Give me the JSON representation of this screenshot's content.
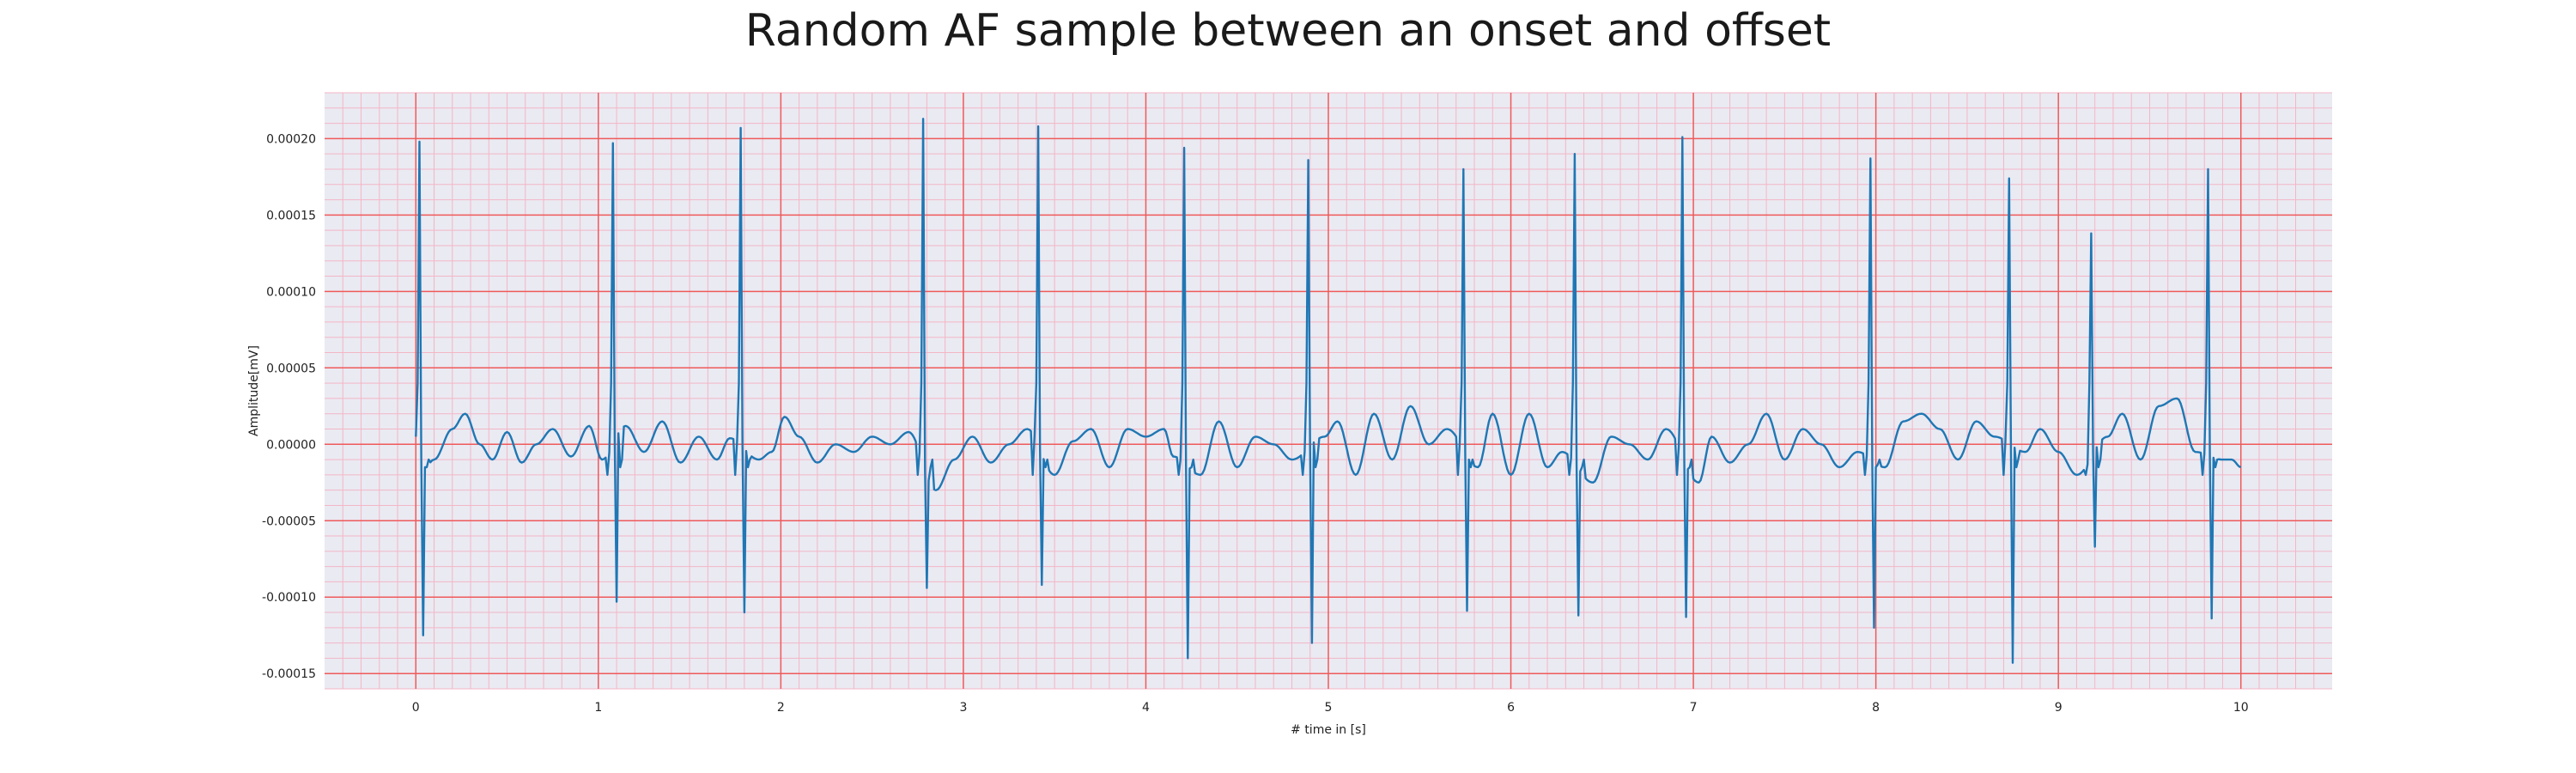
{
  "chart_data": {
    "type": "line",
    "title": "Random AF sample between an onset and offset",
    "xlabel": "# time in [s]",
    "ylabel": "Amplitude[mV]",
    "xlim": [
      -0.5,
      10.5
    ],
    "ylim": [
      -0.00016,
      0.00023
    ],
    "x_ticks": [
      0,
      1,
      2,
      3,
      4,
      5,
      6,
      7,
      8,
      9,
      10
    ],
    "y_ticks": [
      -0.00015,
      -0.0001,
      -5e-05,
      0.0,
      5e-05,
      0.0001,
      0.00015,
      0.0002
    ],
    "y_tick_labels": [
      "-0.00015",
      "-0.00010",
      "-0.00005",
      "0.00000",
      "0.00005",
      "0.00010",
      "0.00015",
      "0.00020"
    ],
    "grid": true,
    "minor_grid": true,
    "series": [
      {
        "color": "#1f77b4",
        "sampling_interval_s": 0.01,
        "r_peaks": [
          {
            "t": 0.02,
            "peak": 0.000198,
            "trough": -0.000125
          },
          {
            "t": 1.08,
            "peak": 0.000197,
            "trough": -0.000103
          },
          {
            "t": 1.78,
            "peak": 0.000207,
            "trough": -0.00011
          },
          {
            "t": 2.78,
            "peak": 0.000213,
            "trough": -9.4e-05
          },
          {
            "t": 3.41,
            "peak": 0.000208,
            "trough": -9.2e-05
          },
          {
            "t": 4.21,
            "peak": 0.000194,
            "trough": -0.00014
          },
          {
            "t": 4.89,
            "peak": 0.000186,
            "trough": -0.00013
          },
          {
            "t": 5.74,
            "peak": 0.00018,
            "trough": -0.000109
          },
          {
            "t": 6.35,
            "peak": 0.00019,
            "trough": -0.000112
          },
          {
            "t": 6.94,
            "peak": 0.000201,
            "trough": -0.000113
          },
          {
            "t": 7.97,
            "peak": 0.000187,
            "trough": -0.00012
          },
          {
            "t": 8.73,
            "peak": 0.000174,
            "trough": -0.000143
          },
          {
            "t": 9.18,
            "peak": 0.000138,
            "trough": -6.7e-05
          },
          {
            "t": 9.82,
            "peak": 0.00018,
            "trough": -0.000114
          }
        ],
        "baseline_x": [
          0.0,
          0.05,
          0.1,
          0.2,
          0.27,
          0.35,
          0.42,
          0.5,
          0.58,
          0.66,
          0.75,
          0.85,
          0.95,
          1.02,
          1.15,
          1.25,
          1.35,
          1.45,
          1.55,
          1.65,
          1.72,
          1.88,
          1.95,
          2.02,
          2.1,
          2.2,
          2.3,
          2.4,
          2.5,
          2.6,
          2.7,
          2.85,
          2.95,
          3.05,
          3.15,
          3.25,
          3.35,
          3.5,
          3.6,
          3.7,
          3.8,
          3.9,
          4.0,
          4.1,
          4.15,
          4.3,
          4.4,
          4.5,
          4.6,
          4.7,
          4.8,
          4.98,
          5.05,
          5.15,
          5.25,
          5.35,
          5.45,
          5.55,
          5.65,
          5.82,
          5.9,
          6.0,
          6.1,
          6.2,
          6.28,
          6.45,
          6.55,
          6.65,
          6.75,
          6.85,
          7.03,
          7.1,
          7.2,
          7.3,
          7.4,
          7.5,
          7.6,
          7.7,
          7.8,
          7.9,
          8.05,
          8.15,
          8.25,
          8.35,
          8.45,
          8.55,
          8.65,
          8.82,
          8.9,
          9.0,
          9.1,
          9.27,
          9.35,
          9.45,
          9.55,
          9.65,
          9.75,
          9.9,
          9.95,
          10.0
        ],
        "baseline_y": [
          5e-06,
          -1.5e-05,
          -1e-05,
          1e-05,
          2e-05,
          0.0,
          -1e-05,
          8e-06,
          -1.2e-05,
          0.0,
          1e-05,
          -8e-06,
          1.2e-05,
          -1e-05,
          1.2e-05,
          -5e-06,
          1.5e-05,
          -1.2e-05,
          5e-06,
          -1e-05,
          4e-06,
          -1e-05,
          -5e-06,
          1.8e-05,
          5e-06,
          -1.2e-05,
          0.0,
          -5e-06,
          5e-06,
          0.0,
          8e-06,
          -3e-05,
          -1e-05,
          5e-06,
          -1.2e-05,
          0.0,
          1e-05,
          -2e-05,
          2e-06,
          1e-05,
          -1.5e-05,
          1e-05,
          5e-06,
          1e-05,
          -8e-06,
          -2e-05,
          1.5e-05,
          -1.5e-05,
          5e-06,
          0.0,
          -1e-05,
          5e-06,
          1.5e-05,
          -2e-05,
          2e-05,
          -1e-05,
          2.5e-05,
          0.0,
          1e-05,
          -1.5e-05,
          2e-05,
          -2e-05,
          2e-05,
          -1.5e-05,
          -5e-06,
          -2.5e-05,
          5e-06,
          0.0,
          -1e-05,
          1e-05,
          -2.5e-05,
          5e-06,
          -1.2e-05,
          0.0,
          2e-05,
          -1e-05,
          1e-05,
          0.0,
          -1.5e-05,
          -5e-06,
          -1.5e-05,
          1.5e-05,
          2e-05,
          1e-05,
          -1e-05,
          1.5e-05,
          5e-06,
          -5e-06,
          1e-05,
          -5e-06,
          -2e-05,
          5e-06,
          2e-05,
          -1e-05,
          2.5e-05,
          3e-05,
          -5e-06,
          -1e-05,
          -1e-05,
          -1.5e-05
        ]
      }
    ]
  }
}
